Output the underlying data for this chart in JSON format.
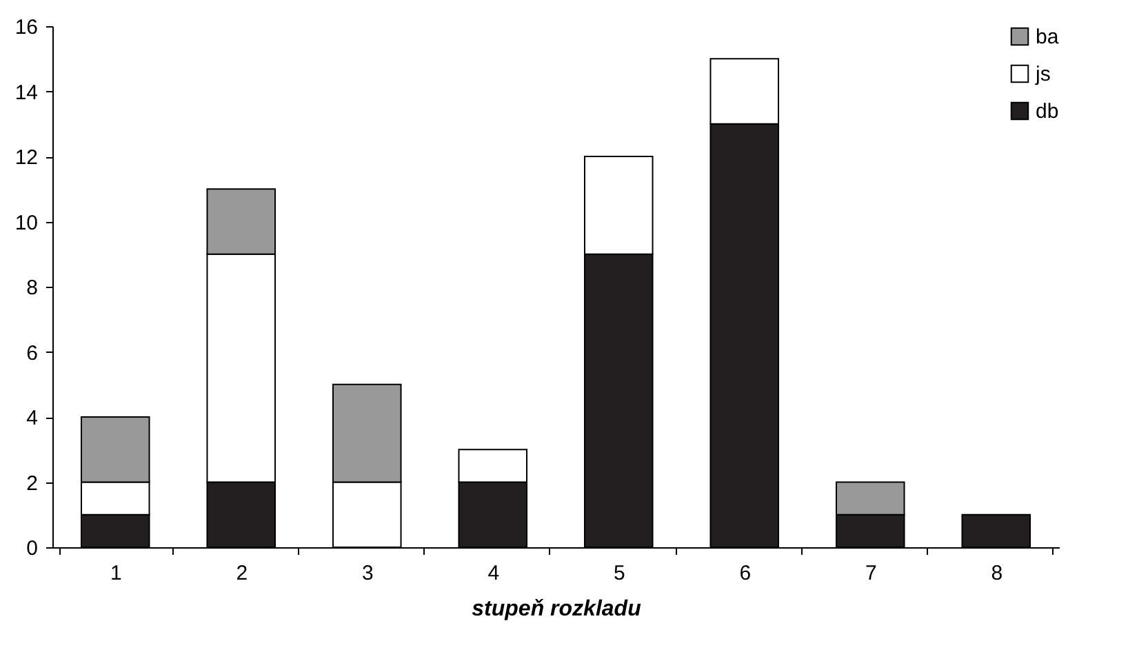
{
  "chart_data": {
    "type": "bar",
    "xlabel": "stupeň rozkladu",
    "categories": [
      "1",
      "2",
      "3",
      "4",
      "5",
      "6",
      "7",
      "8"
    ],
    "series": [
      {
        "name": "db",
        "color": "#231f20",
        "values": [
          1,
          2,
          0,
          2,
          9,
          13,
          1,
          1
        ]
      },
      {
        "name": "js",
        "color": "#ffffff",
        "values": [
          1,
          7,
          2,
          1,
          3,
          2,
          0,
          0
        ]
      },
      {
        "name": "ba",
        "color": "#999999",
        "values": [
          2,
          2,
          3,
          0,
          0,
          0,
          1,
          0
        ]
      }
    ],
    "stacked": true,
    "ylim": [
      0,
      16
    ],
    "yticks": [
      0,
      2,
      4,
      6,
      8,
      10,
      12,
      14,
      16
    ],
    "grid": false,
    "legend": "top right"
  }
}
